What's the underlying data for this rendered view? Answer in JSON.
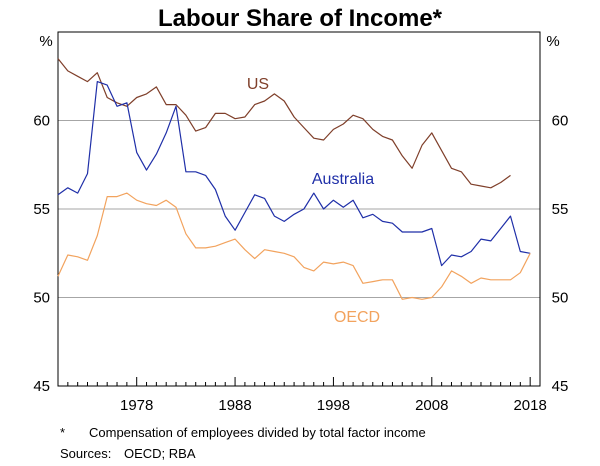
{
  "chart_data": {
    "type": "line",
    "title": "Labour Share of Income*",
    "y_unit_left": "%",
    "y_unit_right": "%",
    "ylim": [
      45,
      65
    ],
    "yticks": [
      45,
      50,
      55,
      60
    ],
    "xlim": [
      1970,
      2019
    ],
    "xticks": [
      1978,
      1988,
      1998,
      2008,
      2018
    ],
    "grid": true,
    "series": [
      {
        "name": "US",
        "color": "#7f3f2a",
        "x": [
          1970,
          1971,
          1972,
          1973,
          1974,
          1975,
          1976,
          1977,
          1978,
          1979,
          1980,
          1981,
          1982,
          1983,
          1984,
          1985,
          1986,
          1987,
          1988,
          1989,
          1990,
          1991,
          1992,
          1993,
          1994,
          1995,
          1996,
          1997,
          1998,
          1999,
          2000,
          2001,
          2002,
          2003,
          2004,
          2005,
          2006,
          2007,
          2008,
          2009,
          2010,
          2011,
          2012,
          2013,
          2014,
          2015,
          2016,
          2017
        ],
        "values": [
          63.5,
          62.8,
          62.5,
          62.2,
          62.7,
          61.3,
          61.0,
          60.8,
          61.3,
          61.5,
          61.9,
          60.9,
          60.9,
          60.3,
          59.4,
          59.6,
          60.4,
          60.4,
          60.1,
          60.2,
          60.9,
          61.1,
          61.5,
          61.1,
          60.2,
          59.6,
          59.0,
          58.9,
          59.5,
          59.8,
          60.3,
          60.1,
          59.5,
          59.1,
          58.9,
          58.0,
          57.3,
          58.6,
          59.3,
          58.3,
          57.3,
          57.1,
          56.4,
          56.3,
          56.2,
          56.5,
          56.9,
          null
        ]
      },
      {
        "name": "Australia",
        "color": "#1f2fa8",
        "x": [
          1970,
          1971,
          1972,
          1973,
          1974,
          1975,
          1976,
          1977,
          1978,
          1979,
          1980,
          1981,
          1982,
          1983,
          1984,
          1985,
          1986,
          1987,
          1988,
          1989,
          1990,
          1991,
          1992,
          1993,
          1994,
          1995,
          1996,
          1997,
          1998,
          1999,
          2000,
          2001,
          2002,
          2003,
          2004,
          2005,
          2006,
          2007,
          2008,
          2009,
          2010,
          2011,
          2012,
          2013,
          2014,
          2015,
          2016,
          2017,
          2018
        ],
        "values": [
          55.8,
          56.2,
          55.9,
          57.0,
          62.2,
          62.0,
          60.8,
          61.0,
          58.2,
          57.2,
          58.1,
          59.3,
          60.8,
          57.1,
          57.1,
          56.9,
          56.1,
          54.6,
          53.8,
          54.8,
          55.8,
          55.6,
          54.6,
          54.3,
          54.7,
          55.0,
          55.9,
          55.0,
          55.5,
          55.1,
          55.5,
          54.5,
          54.7,
          54.3,
          54.2,
          53.7,
          53.7,
          53.7,
          53.9,
          51.8,
          52.4,
          52.3,
          52.6,
          53.3,
          53.2,
          53.9,
          54.6,
          52.6,
          52.5
        ]
      },
      {
        "name": "OECD",
        "color": "#f2a35e",
        "x": [
          1970,
          1971,
          1972,
          1973,
          1974,
          1975,
          1976,
          1977,
          1978,
          1979,
          1980,
          1981,
          1982,
          1983,
          1984,
          1985,
          1986,
          1987,
          1988,
          1989,
          1990,
          1991,
          1992,
          1993,
          1994,
          1995,
          1996,
          1997,
          1998,
          1999,
          2000,
          2001,
          2002,
          2003,
          2004,
          2005,
          2006,
          2007,
          2008,
          2009,
          2010,
          2011,
          2012,
          2013,
          2014,
          2015,
          2016,
          2017,
          2018
        ],
        "values": [
          51.2,
          52.4,
          52.3,
          52.1,
          53.5,
          55.7,
          55.7,
          55.9,
          55.5,
          55.3,
          55.2,
          55.5,
          55.1,
          53.6,
          52.8,
          52.8,
          52.9,
          53.1,
          53.3,
          52.7,
          52.2,
          52.7,
          52.6,
          52.5,
          52.3,
          51.7,
          51.5,
          52.0,
          51.9,
          52.0,
          51.8,
          50.8,
          50.9,
          51.0,
          51.0,
          49.9,
          50.0,
          49.9,
          50.0,
          50.6,
          51.5,
          51.2,
          50.8,
          51.1,
          51.0,
          51.0,
          51.0,
          51.4,
          52.5
        ]
      }
    ],
    "series_labels": [
      "US",
      "Australia",
      "OECD"
    ],
    "footnote": "Compensation of employees divided by total factor income",
    "footnote_marker": "*",
    "sources_label": "Sources:",
    "sources_text": "OECD; RBA"
  }
}
